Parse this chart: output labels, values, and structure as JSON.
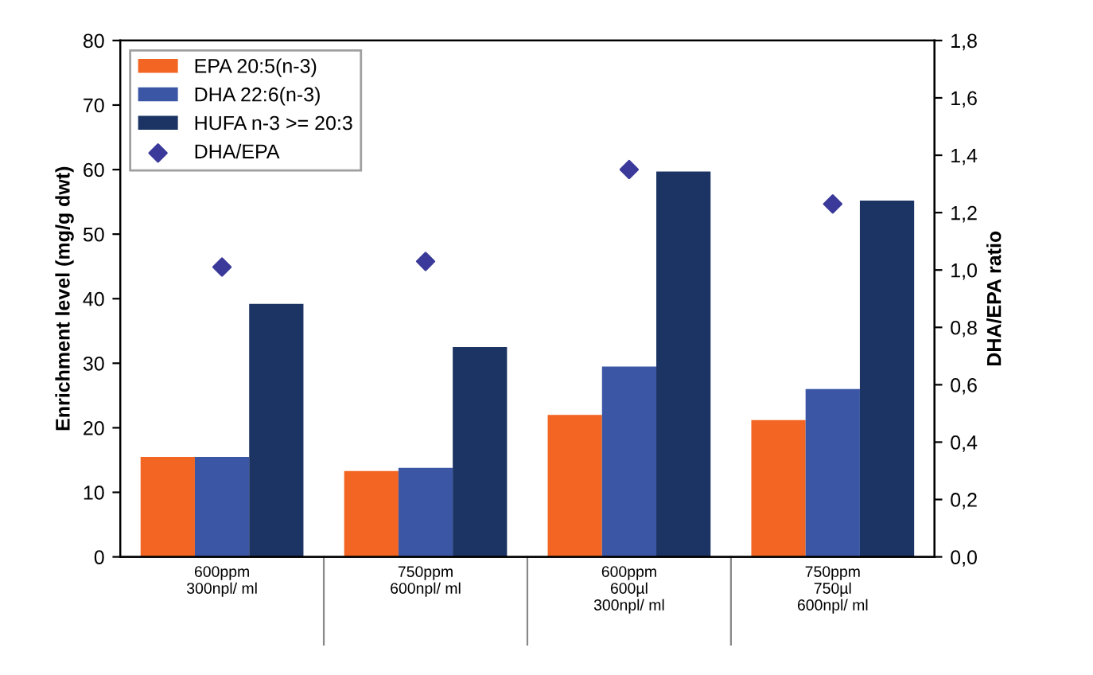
{
  "chart_data": {
    "type": "bar",
    "categories": [
      "600ppm\n300npl/ ml",
      "750ppm\n600npl/ ml",
      "600ppm\n600µl\n300npl/ ml",
      "750ppm\n750µl\n600npl/ ml"
    ],
    "ylabel": "Enrichment level (mg/g dwt)",
    "y2label": "DHA/EPA ratio",
    "ylim": [
      0,
      80
    ],
    "yticks": [
      0,
      10,
      20,
      30,
      40,
      50,
      60,
      70,
      80
    ],
    "y2lim": [
      0,
      1.8
    ],
    "y2ticks": [
      {
        "value": 0,
        "label": "0,0"
      },
      {
        "value": 0.2,
        "label": "0,2"
      },
      {
        "value": 0.4,
        "label": "0,4"
      },
      {
        "value": 0.6,
        "label": "0,6"
      },
      {
        "value": 0.8,
        "label": "0,8"
      },
      {
        "value": 1.0,
        "label": "1,0"
      },
      {
        "value": 1.2,
        "label": "1,2"
      },
      {
        "value": 1.4,
        "label": "1,4"
      },
      {
        "value": 1.6,
        "label": "1,6"
      },
      {
        "value": 1.8,
        "label": "1,8"
      }
    ],
    "grid": false,
    "legend": "top left",
    "series": [
      {
        "name": "EPA 20:5(n-3)",
        "color": "#f26522",
        "values": [
          15.5,
          13.3,
          22.0,
          21.2
        ]
      },
      {
        "name": "DHA 22:6(n-3)",
        "color": "#3a56a5",
        "values": [
          15.5,
          13.8,
          29.5,
          26.0
        ]
      },
      {
        "name": "HUFA n-3 >= 20:3",
        "color": "#1c3464",
        "values": [
          39.2,
          32.5,
          59.7,
          55.2
        ]
      },
      {
        "name": "DHA/EPA",
        "color": "#3b3a9a",
        "type": "scatter",
        "axis": "y2",
        "marker": "diamond",
        "values": [
          1.01,
          1.03,
          1.35,
          1.23
        ]
      }
    ]
  }
}
